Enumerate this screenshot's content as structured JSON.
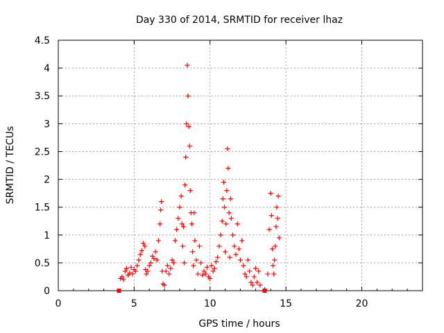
{
  "chart_data": {
    "type": "scatter",
    "title": "Day 330 of 2014, SRMTID for receiver lhaz",
    "xlabel": "GPS time / hours",
    "ylabel": "SRMTID / TECUs",
    "xlim": [
      0,
      24
    ],
    "ylim": [
      0,
      4.5
    ],
    "xticks": [
      0,
      5,
      10,
      15,
      20
    ],
    "xtick_labels": [
      "0",
      "5",
      "10",
      "15",
      "20"
    ],
    "yticks": [
      0,
      0.5,
      1,
      1.5,
      2,
      2.5,
      3,
      3.5,
      4,
      4.5
    ],
    "ytick_labels": [
      "0",
      "0.5",
      "1",
      "1.5",
      "2",
      "2.5",
      "3",
      "3.5",
      "4",
      "4.5"
    ],
    "grid": true,
    "marker": "plus",
    "color": "#ff0000",
    "series": [
      {
        "name": "SRMTID",
        "x": [
          4.1,
          4.2,
          4.3,
          4.4,
          4.5,
          4.6,
          4.7,
          4.8,
          4.9,
          5.0,
          5.1,
          5.2,
          5.3,
          5.4,
          5.5,
          5.6,
          5.7,
          5.75,
          5.8,
          5.9,
          6.0,
          6.1,
          6.2,
          6.3,
          6.4,
          6.5,
          6.6,
          6.7,
          6.75,
          6.8,
          6.85,
          6.9,
          7.0,
          7.1,
          7.2,
          7.3,
          7.4,
          7.5,
          7.6,
          7.7,
          7.8,
          7.9,
          8.0,
          8.1,
          8.15,
          8.2,
          8.25,
          8.3,
          8.35,
          8.4,
          8.45,
          8.5,
          8.55,
          8.6,
          8.65,
          8.7,
          8.75,
          8.8,
          8.85,
          8.9,
          8.95,
          9.0,
          9.1,
          9.2,
          9.3,
          9.4,
          9.5,
          9.6,
          9.7,
          9.8,
          9.9,
          10.0,
          10.1,
          10.2,
          10.3,
          10.4,
          10.5,
          10.6,
          10.7,
          10.8,
          10.85,
          10.9,
          10.95,
          11.0,
          11.05,
          11.1,
          11.15,
          11.2,
          11.25,
          11.3,
          11.35,
          11.4,
          11.5,
          11.6,
          11.7,
          11.8,
          11.9,
          12.0,
          12.1,
          12.2,
          12.3,
          12.4,
          12.5,
          12.6,
          12.7,
          12.8,
          12.9,
          13.0,
          13.1,
          13.2,
          13.3,
          13.6,
          13.8,
          13.9,
          14.0,
          14.05,
          14.1,
          14.15,
          14.2,
          14.25,
          14.3,
          14.35,
          14.4,
          14.45,
          14.5,
          14.55
        ],
        "y": [
          0.22,
          0.25,
          0.2,
          0.35,
          0.4,
          0.28,
          0.32,
          0.42,
          0.3,
          0.38,
          0.35,
          0.45,
          0.55,
          0.65,
          0.72,
          0.85,
          0.8,
          0.38,
          0.3,
          0.35,
          0.45,
          0.5,
          0.62,
          0.58,
          0.7,
          0.55,
          0.9,
          1.2,
          1.45,
          1.6,
          0.35,
          0.12,
          0.1,
          0.35,
          0.45,
          0.3,
          0.4,
          0.55,
          0.5,
          0.9,
          1.1,
          1.3,
          1.5,
          1.7,
          1.2,
          0.8,
          1.15,
          0.5,
          1.9,
          2.4,
          3.0,
          4.05,
          3.5,
          2.95,
          2.6,
          1.8,
          1.4,
          1.2,
          0.7,
          0.45,
          1.4,
          0.9,
          0.55,
          0.3,
          0.8,
          0.5,
          0.28,
          0.35,
          0.3,
          0.42,
          0.25,
          0.22,
          0.45,
          0.35,
          0.4,
          0.52,
          0.6,
          0.8,
          1.0,
          1.25,
          1.65,
          1.95,
          1.5,
          0.7,
          1.2,
          1.8,
          2.55,
          2.2,
          1.4,
          0.6,
          1.65,
          1.3,
          1.0,
          0.8,
          0.65,
          1.2,
          0.75,
          0.55,
          0.9,
          0.45,
          0.3,
          0.25,
          0.55,
          0.35,
          0.15,
          0.1,
          0.25,
          0.4,
          0.15,
          0.35,
          0.1,
          0.02,
          0.3,
          1.1,
          1.75,
          1.35,
          0.75,
          0.45,
          0.3,
          0.55,
          0.8,
          1.15,
          1.5,
          1.3,
          1.7,
          0.95
        ]
      }
    ],
    "baseline_markers": [
      4.0,
      13.6
    ]
  }
}
